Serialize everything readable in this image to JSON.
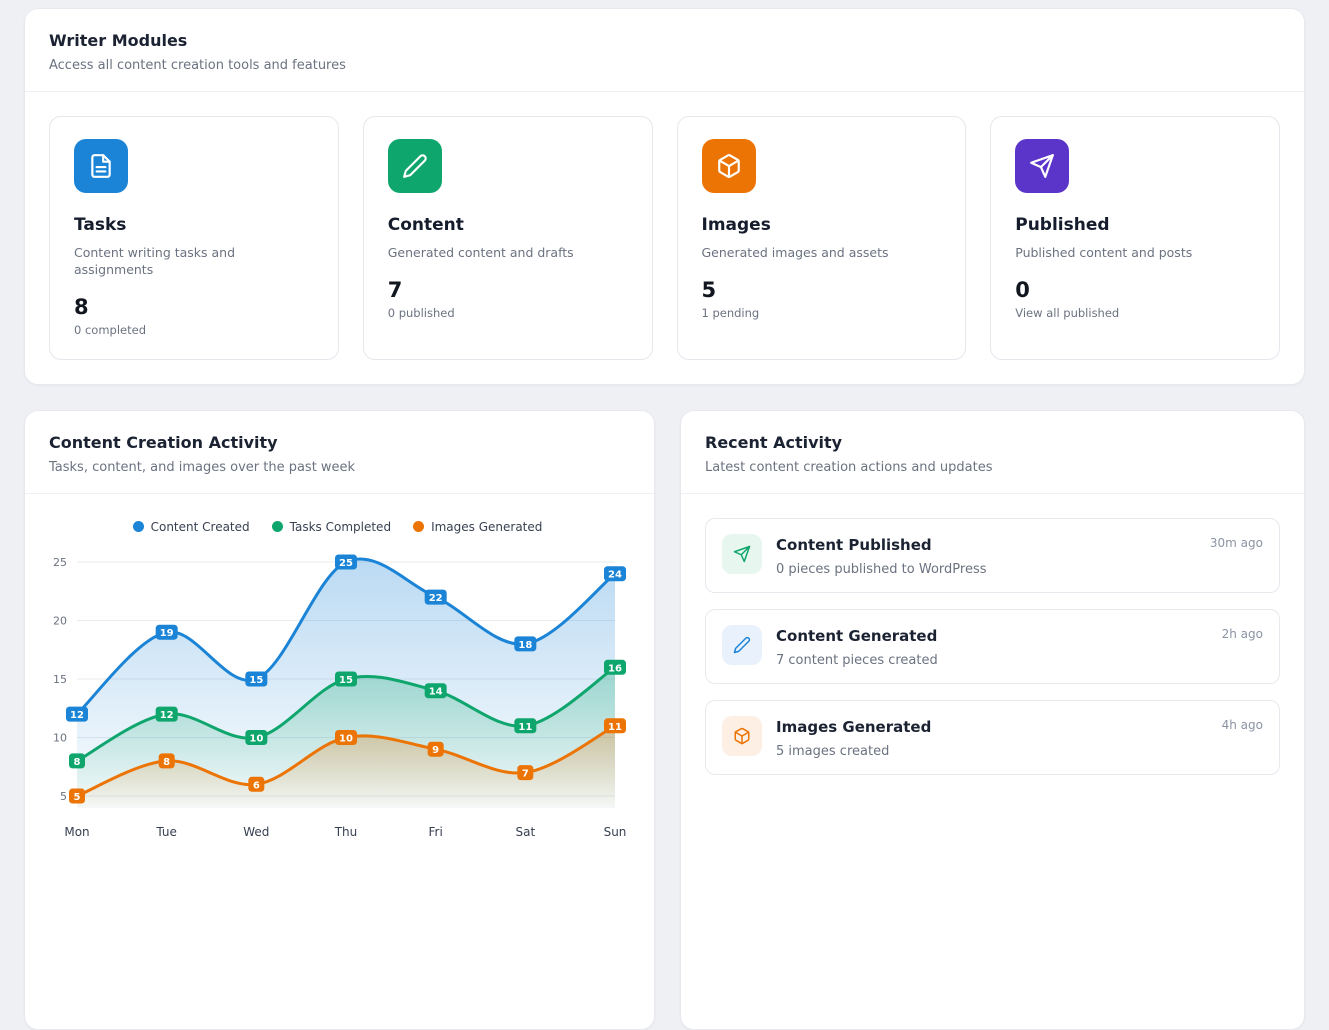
{
  "colors": {
    "page_bg": "#eef0f4"
  },
  "header": {
    "title": "Writer Modules",
    "subtitle": "Access all content creation tools and features"
  },
  "modules": [
    {
      "name": "Tasks",
      "description": "Content writing tasks and assignments",
      "value": "8",
      "sub": "0 completed",
      "icon": "file-icon",
      "color": "#1b84d6"
    },
    {
      "name": "Content",
      "description": "Generated content and drafts",
      "value": "7",
      "sub": "0 published",
      "icon": "pencil-icon",
      "color": "#0fa66d"
    },
    {
      "name": "Images",
      "description": "Generated images and assets",
      "value": "5",
      "sub": "1 pending",
      "icon": "cube-icon",
      "color": "#ec7404"
    },
    {
      "name": "Published",
      "description": "Published content and posts",
      "value": "0",
      "sub": "View all published",
      "icon": "send-icon",
      "color": "#5b35c9"
    }
  ],
  "activity": {
    "title": "Content Creation Activity",
    "subtitle": "Tasks, content, and images over the past week"
  },
  "recent": {
    "title": "Recent Activity",
    "subtitle": "Latest content creation actions and updates",
    "items": [
      {
        "title": "Content Published",
        "description": "0 pieces published to WordPress",
        "time": "30m ago",
        "icon": "send-icon",
        "color": "#0fa66d",
        "icon_bg": "#e7f6ef"
      },
      {
        "title": "Content Generated",
        "description": "7 content pieces created",
        "time": "2h ago",
        "icon": "pencil-icon",
        "color": "#1b84d6",
        "icon_bg": "#e9f2fc"
      },
      {
        "title": "Images Generated",
        "description": "5 images created",
        "time": "4h ago",
        "icon": "cube-icon",
        "color": "#ec7404",
        "icon_bg": "#fdefe3"
      }
    ]
  },
  "chart_data": {
    "type": "line",
    "title": "Content Creation Activity",
    "x": [
      "Mon",
      "Tue",
      "Wed",
      "Thu",
      "Fri",
      "Sat",
      "Sun"
    ],
    "series": [
      {
        "name": "Content Created",
        "color": "#1b84d6",
        "values": [
          12,
          19,
          15,
          25,
          22,
          18,
          24
        ]
      },
      {
        "name": "Tasks Completed",
        "color": "#0fa66d",
        "values": [
          8,
          12,
          10,
          15,
          14,
          11,
          16
        ]
      },
      {
        "name": "Images Generated",
        "color": "#ec7404",
        "values": [
          5,
          8,
          6,
          10,
          9,
          7,
          11
        ]
      }
    ],
    "ylim": [
      5,
      25
    ],
    "yticks": [
      5,
      10,
      15,
      20,
      25
    ],
    "grid": true,
    "legend_position": "top",
    "area_fill": true
  }
}
